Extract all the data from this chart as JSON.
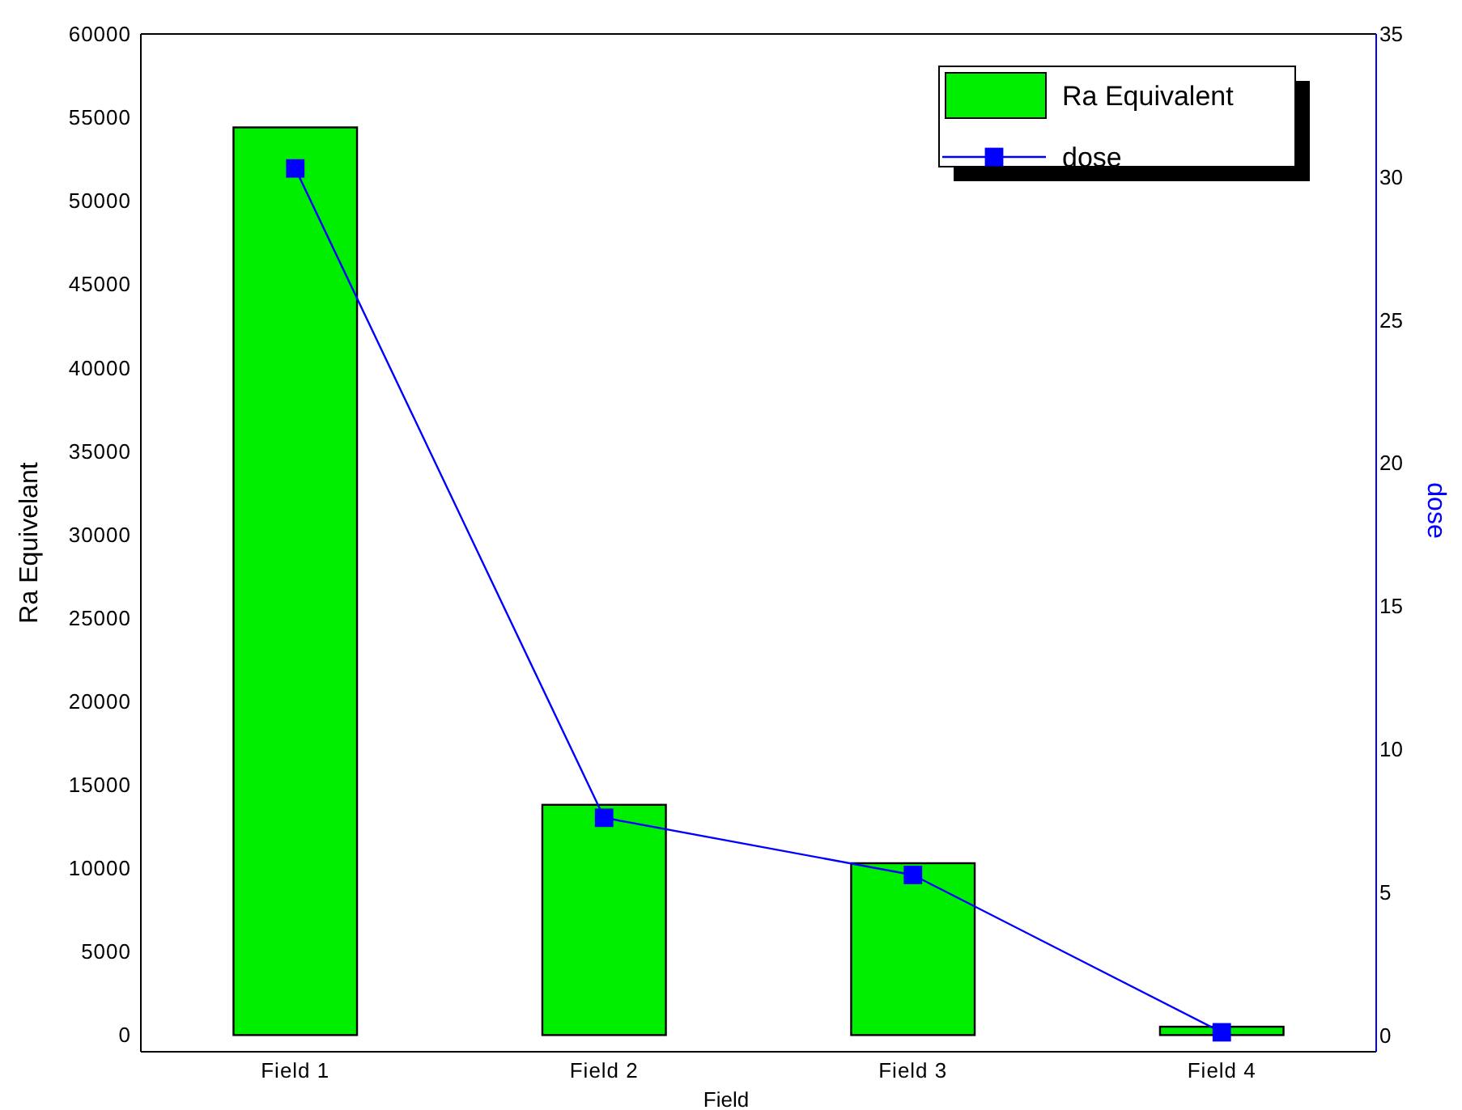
{
  "chart_data": {
    "type": "bar",
    "xlabel": "Field",
    "ylabel": "Ra Equivelant",
    "y2label": "dose",
    "categories": [
      "Field 1",
      "Field 2",
      "Field 3",
      "Field 4"
    ],
    "series": [
      {
        "name": "Ra Equivalent",
        "color": "#00ee00",
        "values": [
          54400,
          13800,
          10300,
          500
        ]
      },
      {
        "name": "dose",
        "type": "line",
        "axis": "y2",
        "color": "#0000ff",
        "values": [
          30.3,
          7.6,
          5.6,
          0.1
        ],
        "marker": "square"
      }
    ],
    "ylim": [
      -1000,
      60000
    ],
    "yticks": [
      0,
      5000,
      10000,
      15000,
      20000,
      25000,
      30000,
      35000,
      40000,
      45000,
      50000,
      55000,
      60000
    ],
    "y2lim": [
      -0.58,
      35
    ],
    "y2ticks": [
      0,
      5,
      10,
      15,
      20,
      25,
      30,
      35
    ],
    "legend": "top right",
    "grid": false
  }
}
